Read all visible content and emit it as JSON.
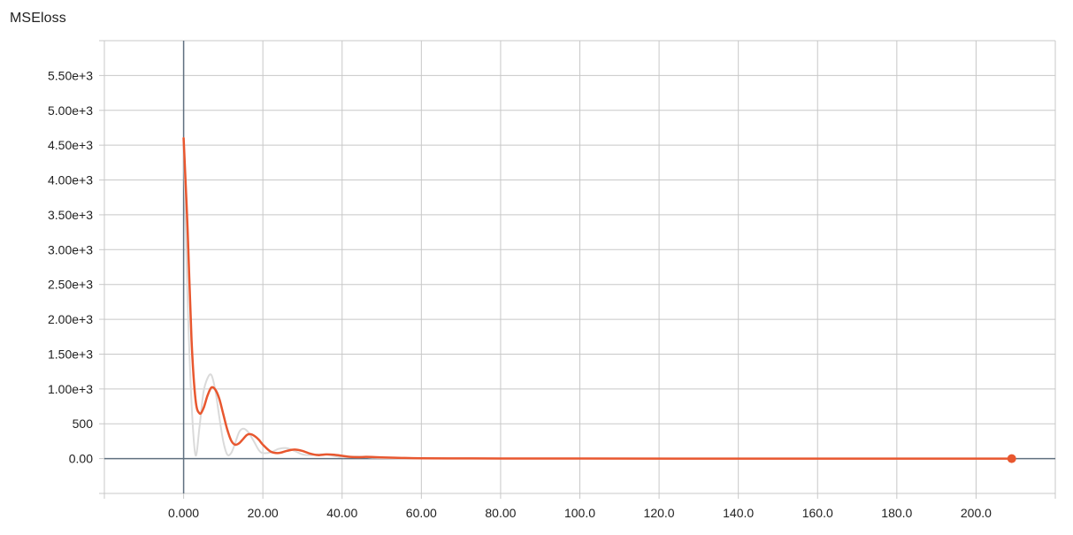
{
  "chart_data": {
    "type": "line",
    "title": "MSEloss",
    "xlabel": "",
    "ylabel": "",
    "xlim": [
      -20,
      220
    ],
    "ylim": [
      -500,
      6000
    ],
    "x_ticks": [
      0,
      20,
      40,
      60,
      80,
      100,
      120,
      140,
      160,
      180,
      200
    ],
    "x_tick_labels": [
      "0.000",
      "20.00",
      "40.00",
      "60.00",
      "80.00",
      "100.0",
      "120.0",
      "140.0",
      "160.0",
      "180.0",
      "200.0"
    ],
    "y_ticks": [
      0,
      500,
      1000,
      1500,
      2000,
      2500,
      3000,
      3500,
      4000,
      4500,
      5000,
      5500
    ],
    "y_tick_labels": [
      "0.00",
      "500",
      "1.00e+3",
      "1.50e+3",
      "2.00e+3",
      "2.50e+3",
      "3.00e+3",
      "3.50e+3",
      "4.00e+3",
      "4.50e+3",
      "5.00e+3",
      "5.50e+3"
    ],
    "grid": true,
    "colors": {
      "smoothed": "#e8572f",
      "raw": "#dadada",
      "grid": "#c8c8c8",
      "axis": "#607080"
    },
    "series": [
      {
        "x": [
          0,
          1,
          2,
          3,
          4,
          5,
          6,
          7,
          8,
          9,
          10,
          11,
          12,
          13,
          14,
          15,
          16,
          17,
          18,
          19,
          20,
          22,
          24,
          26,
          28,
          30,
          32,
          34,
          36,
          38,
          40,
          42,
          44,
          46,
          48,
          50,
          55,
          60,
          70,
          80,
          100,
          150,
          209
        ],
        "y": [
          4600,
          2300,
          800,
          50,
          450,
          950,
          1150,
          1200,
          980,
          600,
          250,
          60,
          80,
          220,
          380,
          430,
          400,
          320,
          220,
          120,
          80,
          90,
          140,
          150,
          110,
          60,
          50,
          60,
          60,
          40,
          20,
          25,
          30,
          22,
          12,
          8,
          5,
          3,
          2,
          1,
          1,
          0,
          0
        ]
      },
      {
        "x": [
          0,
          1,
          2,
          3,
          4,
          5,
          6,
          7,
          8,
          9,
          10,
          11,
          12,
          13,
          14,
          15,
          16,
          17,
          18,
          19,
          20,
          22,
          24,
          26,
          28,
          30,
          32,
          34,
          36,
          38,
          40,
          42,
          44,
          46,
          48,
          50,
          55,
          60,
          70,
          80,
          100,
          150,
          209
        ],
        "y": [
          4600,
          3300,
          1700,
          850,
          650,
          720,
          900,
          1020,
          990,
          860,
          640,
          420,
          260,
          200,
          220,
          280,
          340,
          350,
          320,
          270,
          200,
          100,
          80,
          110,
          130,
          110,
          70,
          50,
          60,
          55,
          40,
          25,
          20,
          25,
          22,
          18,
          10,
          5,
          3,
          2,
          1,
          0,
          0
        ]
      }
    ]
  }
}
